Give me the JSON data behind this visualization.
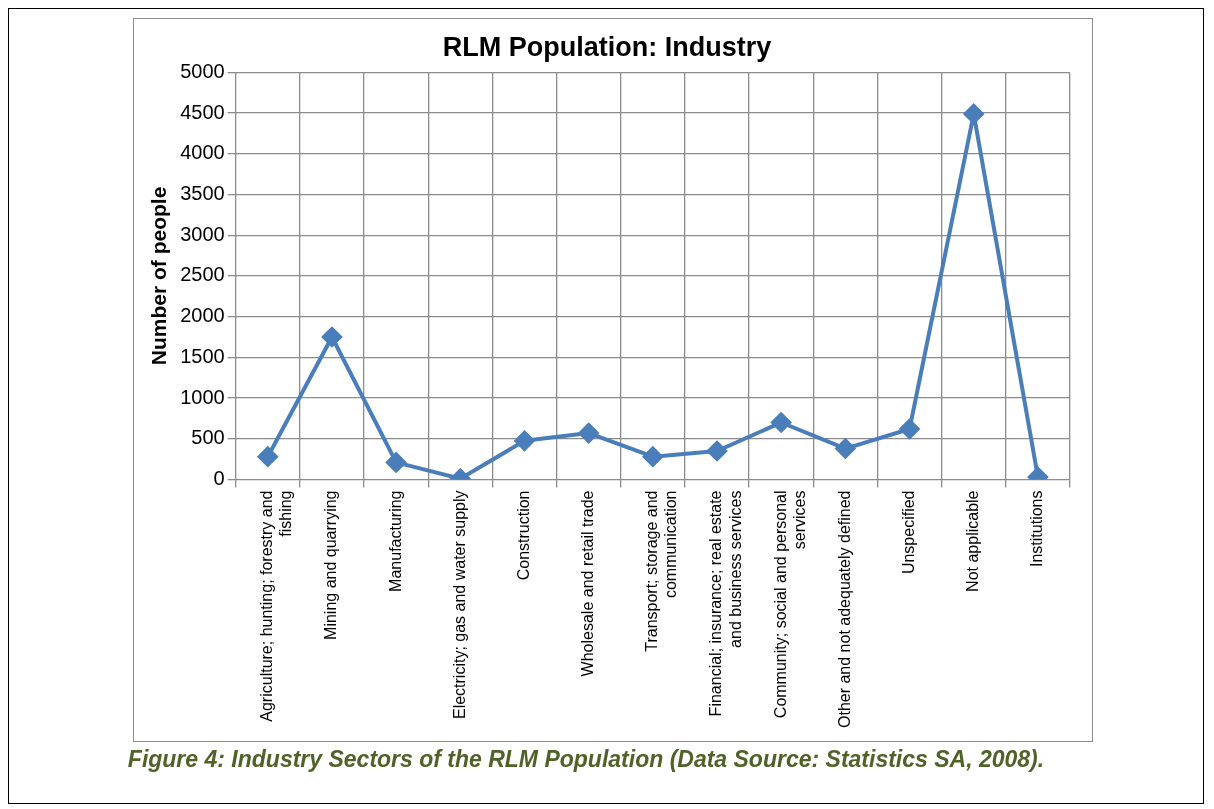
{
  "chart_data": {
    "type": "line",
    "title": "RLM Population: Industry",
    "ylabel": "Number of people",
    "categories": [
      "Agriculture; hunting; forestry and fishing",
      "Mining and quarrying",
      "Manufacturing",
      "Electricity; gas and water supply",
      "Construction",
      "Wholesale and retail trade",
      "Transport; storage and communication",
      "Financial; insurance; real estate and business services",
      "Community; social and personal services",
      "Other and not adequately defined",
      "Unspecified",
      "Not applicable",
      "Institutions"
    ],
    "series": [
      {
        "color": "#4a7ebb",
        "values": [
          280,
          1750,
          210,
          10,
          475,
          570,
          280,
          350,
          700,
          380,
          620,
          4490,
          30
        ]
      }
    ],
    "ylim": [
      0,
      5000
    ],
    "yticks": [
      0,
      500,
      1000,
      1500,
      2000,
      2500,
      3000,
      3500,
      4000,
      4500,
      5000
    ],
    "grid": true,
    "legend": false,
    "marker": "diamond",
    "line_style": "solid",
    "annotations": [
      "Figure 4: Industry Sectors of the RLM Population (Data Source: Statistics SA, 2008)."
    ]
  }
}
